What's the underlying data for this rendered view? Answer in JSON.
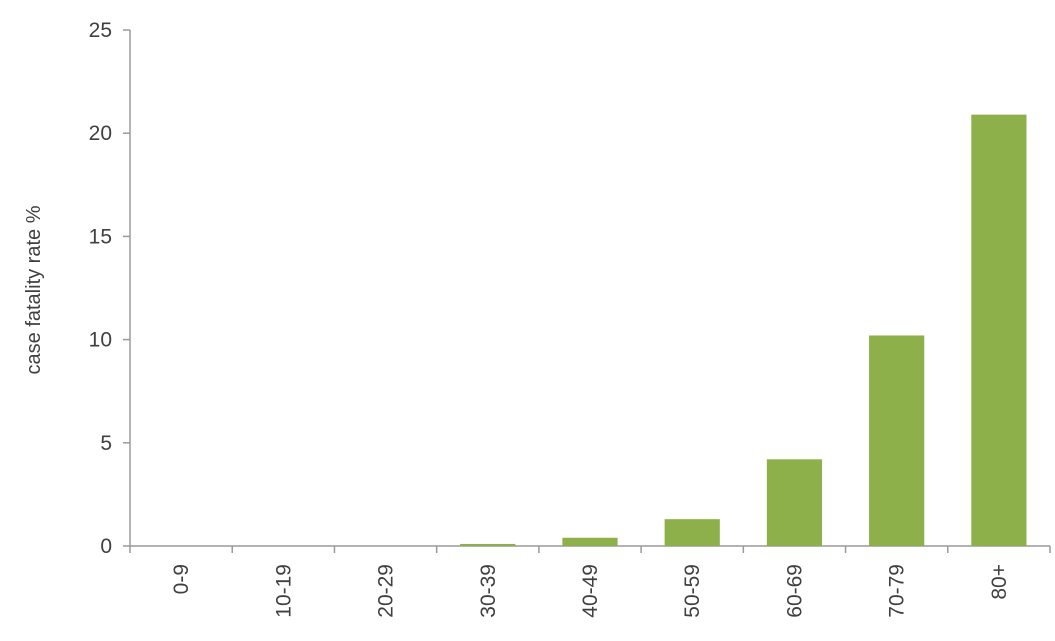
{
  "chart_data": {
    "type": "bar",
    "categories": [
      "0-9",
      "10-19",
      "20-29",
      "30-39",
      "40-49",
      "50-59",
      "60-69",
      "70-79",
      "80+"
    ],
    "values": [
      0,
      0,
      0,
      0.1,
      0.4,
      1.3,
      4.2,
      10.2,
      20.9
    ],
    "title": "",
    "xlabel": "",
    "ylabel": "case fatality rate %",
    "ylim": [
      0,
      25
    ],
    "yticks": [
      0,
      5,
      10,
      15,
      20,
      25
    ],
    "bar_color": "#8db04b",
    "grid": false,
    "legend": "none"
  }
}
